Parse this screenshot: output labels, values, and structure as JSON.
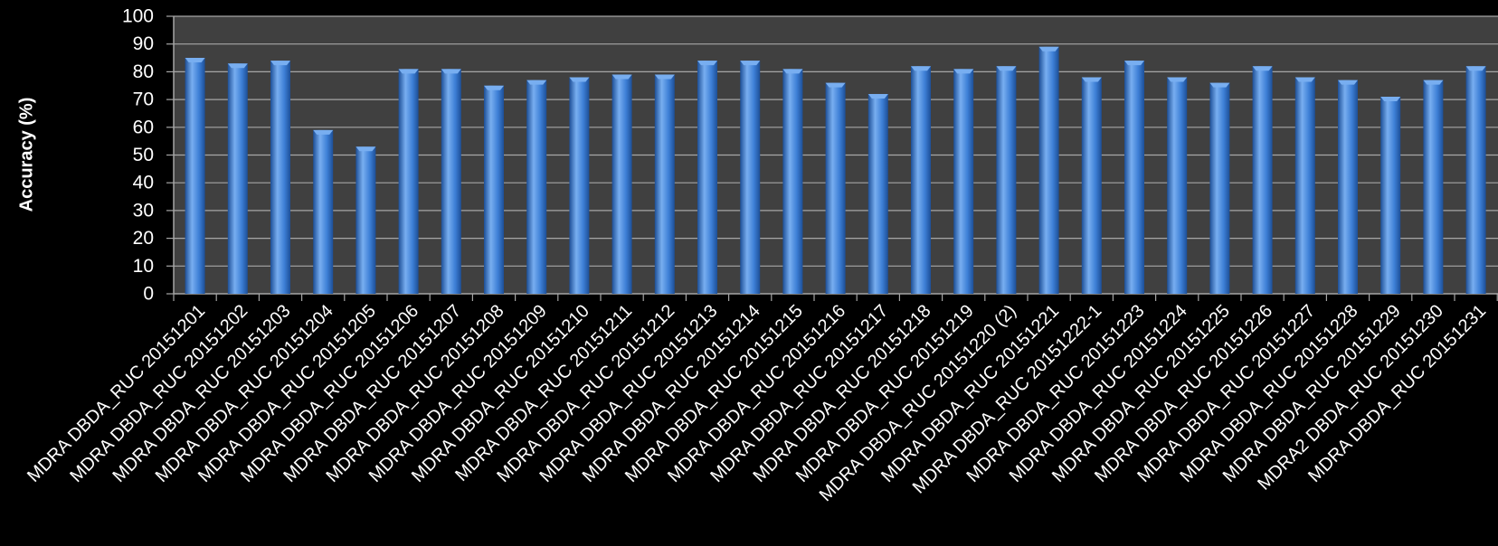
{
  "chart_data": {
    "type": "bar",
    "title": "",
    "xlabel": "",
    "ylabel": "Accuracy (%)",
    "ylim": [
      0,
      100
    ],
    "yticks": [
      0,
      10,
      20,
      30,
      40,
      50,
      60,
      70,
      80,
      90,
      100
    ],
    "grid": true,
    "legend": "none",
    "categories": [
      "MDRA DBDA_RUC 20151201",
      "MDRA DBDA_RUC 20151202",
      "MDRA DBDA_RUC 20151203",
      "MDRA DBDA_RUC 20151204",
      "MDRA DBDA_RUC 20151205",
      "MDRA DBDA_RUC 20151206",
      "MDRA DBDA_RUC 20151207",
      "MDRA DBDA_RUC 20151208",
      "MDRA DBDA_RUC 20151209",
      "MDRA DBDA_RUC 20151210",
      "MDRA DBDA_RUC 20151211",
      "MDRA DBDA_RUC 20151212",
      "MDRA DBDA_RUC 20151213",
      "MDRA DBDA_RUC 20151214",
      "MDRA DBDA_RUC 20151215",
      "MDRA DBDA_RUC 20151216",
      "MDRA DBDA_RUC 20151217",
      "MDRA DBDA_RUC 20151218",
      "MDRA DBDA_RUC 20151219",
      "MDRA DBDA_RUC 20151220 (2)",
      "MDRA DBDA_RUC 20151221",
      "MDRA DBDA_RUC 20151222-1",
      "MDRA DBDA_RUC 20151223",
      "MDRA DBDA_RUC 20151224",
      "MDRA DBDA_RUC 20151225",
      "MDRA DBDA_RUC 20151226",
      "MDRA DBDA_RUC 20151227",
      "MDRA DBDA_RUC 20151228",
      "MDRA DBDA_RUC 20151229",
      "MDRA2 DBDA_RUC 20151230",
      "MDRA DBDA_RUC 20151231"
    ],
    "values": [
      85,
      83,
      84,
      59,
      53,
      81,
      81,
      75,
      77,
      78,
      79,
      79,
      84,
      84,
      81,
      76,
      72,
      82,
      81,
      82,
      89,
      78,
      84,
      78,
      76,
      82,
      78,
      77,
      71,
      77,
      82
    ],
    "colors": {
      "background": "#000000",
      "plot_area": "#404040",
      "gridline": "#a6a6a6",
      "bar": "#3d7fd6",
      "bar_light": "#78aef0",
      "bar_dark": "#1d4f97",
      "text": "#ffffff"
    }
  }
}
